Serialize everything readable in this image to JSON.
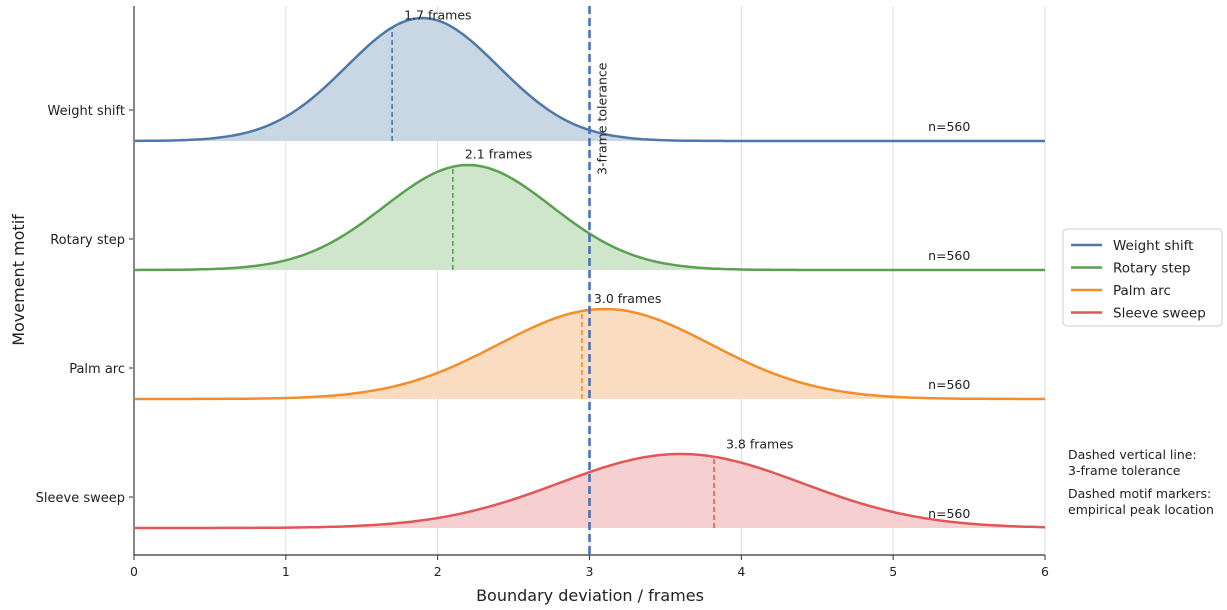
{
  "chart_data": {
    "type": "ridgeline",
    "xlabel": "Boundary deviation / frames",
    "ylabel": "Movement motif",
    "xlim": [
      0,
      6
    ],
    "xticks": [
      "0",
      "1",
      "2",
      "3",
      "4",
      "5",
      "6"
    ],
    "grid": "vertical",
    "legend_position": "right",
    "tolerance": {
      "x": 3,
      "label": "3-frame tolerance",
      "color": "#4a72b8"
    },
    "series": [
      {
        "name": "Weight shift",
        "color": "#4e79a7",
        "fill": "#c9d6e4",
        "center": 1.9,
        "sigma": 0.5,
        "peak_x": 1.7,
        "peak_label": "1.7 frames",
        "n_label": "n=560"
      },
      {
        "name": "Rotary step",
        "color": "#59a14f",
        "fill": "#cfe6cc",
        "center": 2.2,
        "sigma": 0.55,
        "peak_x": 2.1,
        "peak_label": "2.1 frames",
        "n_label": "n=560"
      },
      {
        "name": "Palm arc",
        "color": "#f28e2b",
        "fill": "#fadcc1",
        "center": 3.1,
        "sigma": 0.7,
        "peak_x": 2.95,
        "peak_label": "3.0 frames",
        "n_label": "n=560"
      },
      {
        "name": "Sleeve sweep",
        "color": "#e15759",
        "fill": "#f6cfd0",
        "center": 3.6,
        "sigma": 0.8,
        "peak_x": 3.82,
        "peak_label": "3.8 frames",
        "n_label": "n=560"
      }
    ],
    "notes": [
      [
        "Dashed vertical line:",
        "3-frame tolerance"
      ],
      [
        "Dashed motif markers:",
        "empirical peak location"
      ]
    ]
  }
}
